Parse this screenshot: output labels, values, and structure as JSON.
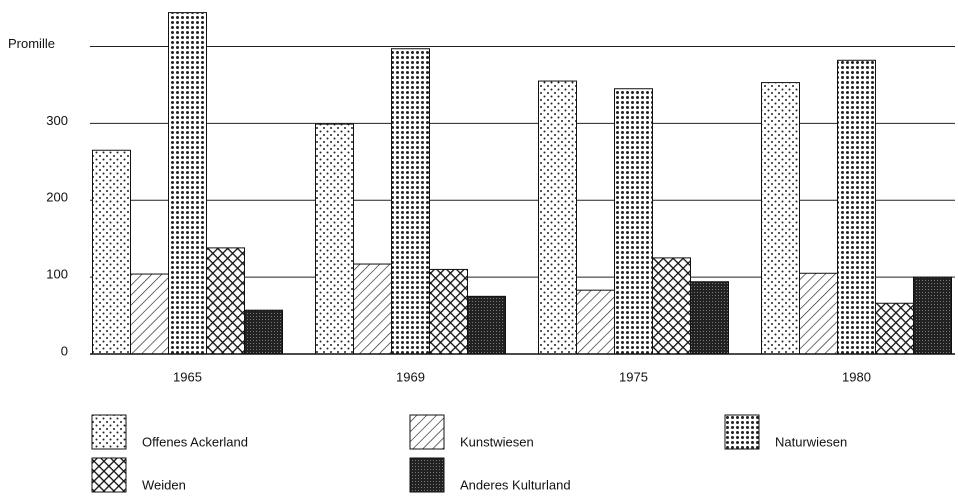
{
  "chart_data": {
    "type": "bar",
    "categories": [
      "1965",
      "1969",
      "1975",
      "1980"
    ],
    "series": [
      {
        "name": "Offenes Ackerland",
        "values": [
          265,
          299,
          355,
          353
        ]
      },
      {
        "name": "Kunstwiesen",
        "values": [
          104,
          117,
          83,
          105
        ]
      },
      {
        "name": "Naturwiesen",
        "values": [
          444,
          397,
          345,
          382
        ]
      },
      {
        "name": "Weiden",
        "values": [
          138,
          110,
          125,
          66
        ]
      },
      {
        "name": "Anderes Kulturland",
        "values": [
          57,
          75,
          94,
          100
        ]
      }
    ],
    "ylim": [
      0,
      450
    ],
    "yticks": [
      0,
      100,
      200,
      300,
      {
        "value": 400,
        "label": "Promille"
      }
    ],
    "grid": true
  }
}
